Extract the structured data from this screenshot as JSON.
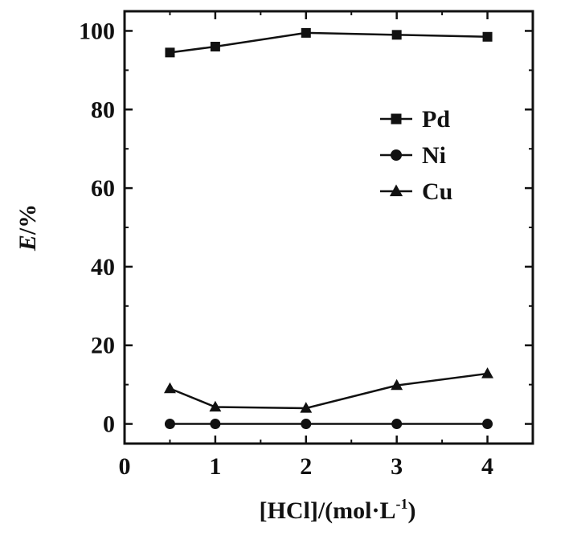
{
  "chart_data": {
    "type": "line",
    "title": "",
    "xlabel": "[HCl]/(mol·L",
    "xlabel_superscript": "-1",
    "xlabel_suffix": ")",
    "ylabel": "E/%",
    "xlim": [
      0,
      4.5
    ],
    "ylim": [
      -5,
      105
    ],
    "xticks": [
      0,
      1,
      2,
      3,
      4
    ],
    "yticks": [
      0,
      20,
      40,
      60,
      80,
      100
    ],
    "grid": false,
    "legend_position": "top-right",
    "series": [
      {
        "name": "Pd",
        "marker": "square",
        "x": [
          0.5,
          1,
          2,
          3,
          4
        ],
        "y": [
          94.5,
          96,
          99.5,
          99,
          98.5
        ]
      },
      {
        "name": "Ni",
        "marker": "circle",
        "x": [
          0.5,
          1,
          2,
          3,
          4
        ],
        "y": [
          0,
          0,
          0,
          0,
          0
        ]
      },
      {
        "name": "Cu",
        "marker": "triangle",
        "x": [
          0.5,
          1,
          2,
          3,
          4
        ],
        "y": [
          9,
          4.3,
          4,
          9.8,
          12.8
        ]
      }
    ],
    "colors": {
      "line": "#111111",
      "marker": "#111111"
    }
  }
}
